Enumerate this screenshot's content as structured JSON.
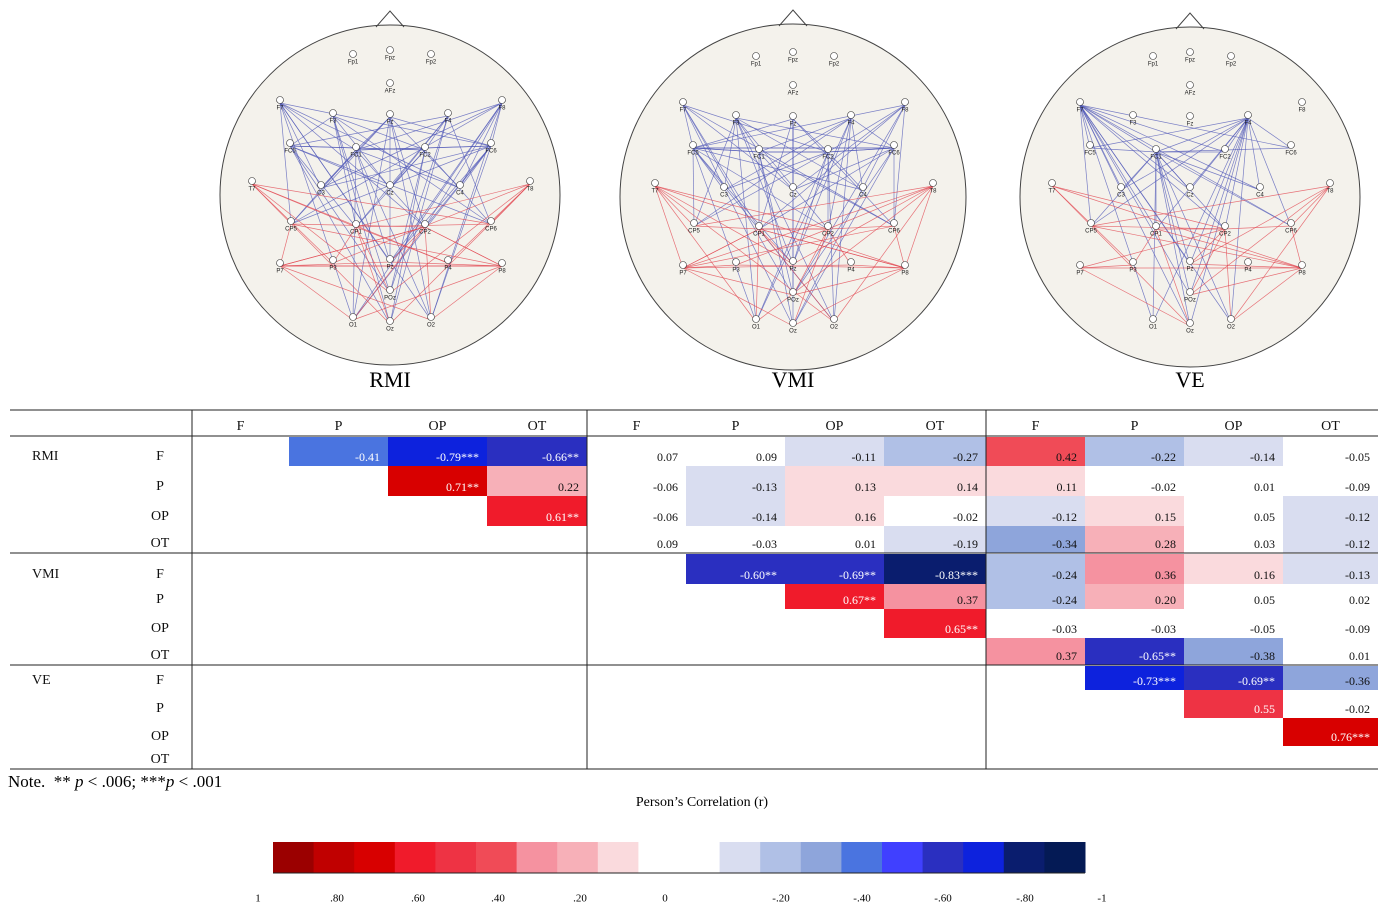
{
  "figure": {
    "panels": [
      {
        "label": "RMI"
      },
      {
        "label": "VMI"
      },
      {
        "label": "VE"
      }
    ],
    "electrodes": [
      "Fp1",
      "Fpz",
      "Fp2",
      "AFz",
      "F7",
      "F3",
      "Fz",
      "F4",
      "F8",
      "FC5",
      "FC1",
      "FC2",
      "FC6",
      "T7",
      "C3",
      "Cz",
      "C4",
      "T8",
      "CP5",
      "CP1",
      "CP2",
      "CP6",
      "P7",
      "P3",
      "Pz",
      "P4",
      "P8",
      "POz",
      "O1",
      "Oz",
      "O2"
    ]
  },
  "table": {
    "header": [
      "F",
      "P",
      "OP",
      "OT",
      "F",
      "P",
      "OP",
      "OT",
      "F",
      "P",
      "OP",
      "OT"
    ],
    "groups": [
      {
        "label": "RMI",
        "rows": [
          {
            "label": "F",
            "cells": [
              null,
              "-0.41",
              "-0.79***",
              "-0.66**",
              "0.07",
              "0.09",
              "-0.11",
              "-0.27",
              "0.42",
              "-0.22",
              "-0.14",
              "-0.05"
            ]
          },
          {
            "label": "P",
            "cells": [
              null,
              null,
              "0.71**",
              "0.22",
              "-0.06",
              "-0.13",
              "0.13",
              "0.14",
              "0.11",
              "-0.02",
              "0.01",
              "-0.09"
            ]
          },
          {
            "label": "OP",
            "cells": [
              null,
              null,
              null,
              "0.61**",
              "-0.06",
              "-0.14",
              "0.16",
              "-0.02",
              "-0.12",
              "0.15",
              "0.05",
              "-0.12"
            ]
          },
          {
            "label": "OT",
            "cells": [
              null,
              null,
              null,
              null,
              "0.09",
              "-0.03",
              "0.01",
              "-0.19",
              "-0.34",
              "0.28",
              "0.03",
              "-0.12"
            ]
          }
        ]
      },
      {
        "label": "VMI",
        "rows": [
          {
            "label": "F",
            "cells": [
              null,
              null,
              null,
              null,
              null,
              "-0.60**",
              "-0.69**",
              "-0.83***",
              "-0.24",
              "0.36",
              "0.16",
              "-0.13"
            ]
          },
          {
            "label": "P",
            "cells": [
              null,
              null,
              null,
              null,
              null,
              null,
              "0.67**",
              "0.37",
              "-0.24",
              "0.20",
              "0.05",
              "0.02"
            ]
          },
          {
            "label": "OP",
            "cells": [
              null,
              null,
              null,
              null,
              null,
              null,
              null,
              "0.65**",
              "-0.03",
              "-0.03",
              "-0.05",
              "-0.09"
            ]
          },
          {
            "label": "OT",
            "cells": [
              null,
              null,
              null,
              null,
              null,
              null,
              null,
              null,
              "0.37",
              "-0.65**",
              "-0.38",
              "0.01"
            ]
          }
        ]
      },
      {
        "label": "VE",
        "rows": [
          {
            "label": "F",
            "cells": [
              null,
              null,
              null,
              null,
              null,
              null,
              null,
              null,
              null,
              "-0.73***",
              "-0.69**",
              "-0.36"
            ]
          },
          {
            "label": "P",
            "cells": [
              null,
              null,
              null,
              null,
              null,
              null,
              null,
              null,
              null,
              null,
              "0.55",
              "-0.02"
            ]
          },
          {
            "label": "OP",
            "cells": [
              null,
              null,
              null,
              null,
              null,
              null,
              null,
              null,
              null,
              null,
              null,
              "0.76***"
            ]
          },
          {
            "label": "OT",
            "cells": [
              null,
              null,
              null,
              null,
              null,
              null,
              null,
              null,
              null,
              null,
              null,
              null
            ]
          }
        ]
      }
    ]
  },
  "note": [
    "Note.  ** ",
    "p",
    " < .006; ***",
    "p",
    " < .001"
  ],
  "legend": {
    "title": "Person’s Correlation (r)",
    "colors": [
      "#9b0000",
      "#c00000",
      "#d80000",
      "#f01b2b",
      "#ee3344",
      "#f04b57",
      "#f592a0",
      "#f7b0b8",
      "#fadadd",
      "#ffffff",
      "#ffffff",
      "#d9ddf0",
      "#b0c0e6",
      "#8ea5db",
      "#4a74e0",
      "#4040ff",
      "#2a2fc0",
      "#0d22dd",
      "#0a1d6e",
      "#041a55"
    ],
    "labels": [
      "1",
      ".80",
      ".60",
      ".40",
      ".20",
      "0",
      "-.20",
      "-.40",
      "-.60",
      "-.80",
      "-1"
    ]
  }
}
